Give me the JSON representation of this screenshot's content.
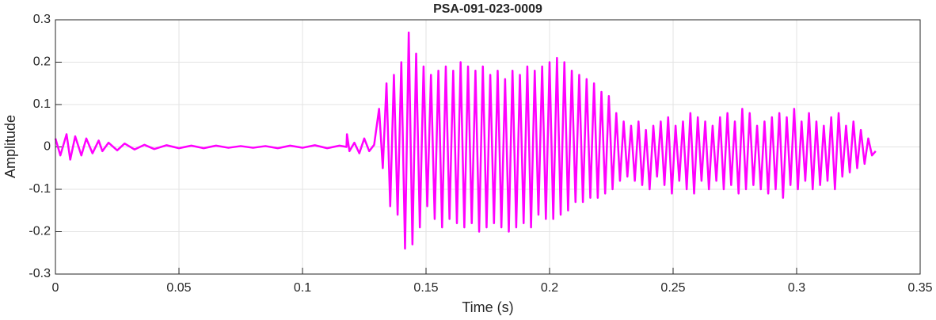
{
  "chart_data": {
    "type": "line",
    "title": "PSA-091-023-0009",
    "xlabel": "Time (s)",
    "ylabel": "Amplitude",
    "x": [
      0,
      0.002,
      0.0045,
      0.006,
      0.008,
      0.0105,
      0.0125,
      0.015,
      0.0175,
      0.019,
      0.0215,
      0.025,
      0.028,
      0.032,
      0.036,
      0.04,
      0.045,
      0.05,
      0.055,
      0.06,
      0.065,
      0.07,
      0.075,
      0.08,
      0.085,
      0.09,
      0.095,
      0.1,
      0.105,
      0.11,
      0.115,
      0.1178,
      0.118,
      0.119,
      0.121,
      0.123,
      0.125,
      0.127,
      0.129,
      0.131,
      0.1325,
      0.134,
      0.1355,
      0.137,
      0.1385,
      0.14,
      0.1415,
      0.143,
      0.1445,
      0.146,
      0.1475,
      0.149,
      0.1505,
      0.152,
      0.1535,
      0.155,
      0.1565,
      0.158,
      0.1595,
      0.161,
      0.1625,
      0.164,
      0.1655,
      0.167,
      0.1685,
      0.17,
      0.1715,
      0.173,
      0.1745,
      0.176,
      0.1775,
      0.179,
      0.1805,
      0.182,
      0.1835,
      0.185,
      0.1865,
      0.188,
      0.1895,
      0.191,
      0.1925,
      0.194,
      0.1955,
      0.197,
      0.1985,
      0.2,
      0.2015,
      0.203,
      0.2045,
      0.206,
      0.2075,
      0.209,
      0.2105,
      0.212,
      0.2135,
      0.215,
      0.2165,
      0.218,
      0.2195,
      0.221,
      0.2225,
      0.224,
      0.2255,
      0.227,
      0.2285,
      0.23,
      0.2315,
      0.233,
      0.2345,
      0.236,
      0.2375,
      0.239,
      0.2405,
      0.242,
      0.2435,
      0.245,
      0.2465,
      0.248,
      0.2495,
      0.251,
      0.2525,
      0.254,
      0.2555,
      0.257,
      0.2585,
      0.26,
      0.2615,
      0.263,
      0.2645,
      0.266,
      0.2675,
      0.269,
      0.2705,
      0.272,
      0.2735,
      0.275,
      0.2765,
      0.278,
      0.2795,
      0.281,
      0.2825,
      0.284,
      0.2855,
      0.287,
      0.2885,
      0.29,
      0.2915,
      0.293,
      0.2945,
      0.296,
      0.2975,
      0.299,
      0.3005,
      0.302,
      0.3035,
      0.305,
      0.3065,
      0.308,
      0.3095,
      0.311,
      0.3125,
      0.314,
      0.3155,
      0.317,
      0.3185,
      0.32,
      0.3215,
      0.323,
      0.3245,
      0.326,
      0.3275,
      0.329,
      0.3305,
      0.332
    ],
    "values": [
      0.02,
      -0.02,
      0.03,
      -0.03,
      0.025,
      -0.02,
      0.02,
      -0.015,
      0.015,
      -0.01,
      0.01,
      -0.008,
      0.008,
      -0.006,
      0.005,
      -0.005,
      0.004,
      -0.003,
      0.003,
      -0.003,
      0.003,
      -0.002,
      0.002,
      -0.002,
      0.002,
      -0.003,
      0.003,
      -0.002,
      0.004,
      -0.003,
      0.003,
      0,
      0.03,
      -0.01,
      0.01,
      -0.015,
      0.02,
      -0.01,
      0.005,
      0.09,
      -0.05,
      0.15,
      -0.14,
      0.17,
      -0.16,
      0.2,
      -0.24,
      0.27,
      -0.23,
      0.22,
      -0.19,
      0.19,
      -0.14,
      0.17,
      -0.17,
      0.18,
      -0.19,
      0.19,
      -0.17,
      0.18,
      -0.18,
      0.2,
      -0.19,
      0.19,
      -0.18,
      0.18,
      -0.2,
      0.19,
      -0.19,
      0.17,
      -0.18,
      0.18,
      -0.19,
      0.16,
      -0.2,
      0.18,
      -0.19,
      0.17,
      -0.18,
      0.19,
      -0.19,
      0.18,
      -0.16,
      0.19,
      -0.17,
      0.2,
      -0.17,
      0.21,
      -0.16,
      0.2,
      -0.15,
      0.18,
      -0.13,
      0.17,
      -0.13,
      0.16,
      -0.12,
      0.15,
      -0.12,
      0.13,
      -0.11,
      0.12,
      -0.1,
      0.08,
      -0.08,
      0.06,
      -0.07,
      0.05,
      -0.08,
      0.06,
      -0.09,
      0.04,
      -0.1,
      0.05,
      -0.07,
      0.06,
      -0.09,
      0.07,
      -0.11,
      0.05,
      -0.08,
      0.06,
      -0.1,
      0.08,
      -0.11,
      0.07,
      -0.08,
      0.06,
      -0.1,
      0.05,
      -0.08,
      0.07,
      -0.1,
      0.08,
      -0.09,
      0.06,
      -0.11,
      0.09,
      -0.1,
      0.08,
      -0.09,
      0.05,
      -0.1,
      0.06,
      -0.11,
      0.07,
      -0.1,
      0.08,
      -0.12,
      0.07,
      -0.09,
      0.09,
      -0.1,
      0.06,
      -0.08,
      0.08,
      -0.1,
      0.06,
      -0.09,
      0.05,
      -0.08,
      0.07,
      -0.1,
      0.08,
      -0.07,
      0.05,
      -0.06,
      0.06,
      -0.05,
      0.04,
      -0.04,
      0.02,
      -0.02,
      -0.01
    ],
    "color": "#ff00ff",
    "xlim": [
      0,
      0.35
    ],
    "xticks": [
      0,
      0.05,
      0.1,
      0.15,
      0.2,
      0.25,
      0.3,
      0.35
    ],
    "ylim": [
      -0.3,
      0.3
    ],
    "yticks": [
      -0.3,
      -0.2,
      -0.1,
      0,
      0.1,
      0.2,
      0.3
    ],
    "grid": true
  }
}
